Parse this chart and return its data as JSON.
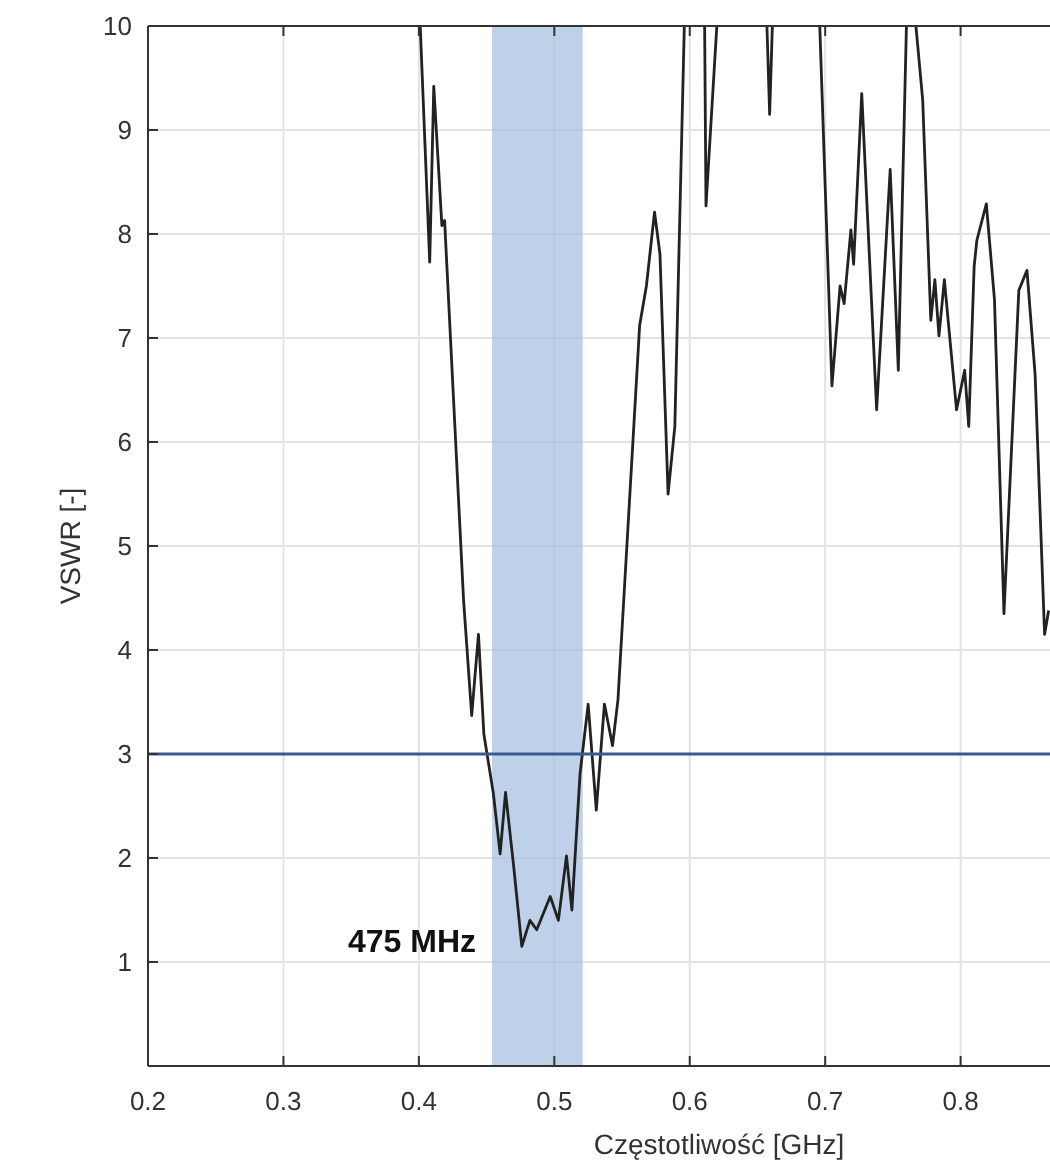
{
  "chart_data": {
    "type": "line",
    "xlabel": "Częstotliwość [GHz]",
    "ylabel": "VSWR [-]",
    "xlim": [
      0.2,
      0.866
    ],
    "ylim": [
      0,
      10
    ],
    "xticks": [
      0.2,
      0.3,
      0.4,
      0.5,
      0.6,
      0.7,
      0.8
    ],
    "yticks": [
      1,
      2,
      3,
      4,
      5,
      6,
      7,
      8,
      9,
      10
    ],
    "grid": true,
    "series": [
      {
        "color": "#222222",
        "x": [
          0.401,
          0.408,
          0.411,
          0.417,
          0.419,
          0.433,
          0.439,
          0.444,
          0.448,
          0.455,
          0.46,
          0.464,
          0.47,
          0.476,
          0.482,
          0.487,
          0.497,
          0.503,
          0.509,
          0.513,
          0.519,
          0.525,
          0.531,
          0.537,
          0.543,
          0.547,
          0.553,
          0.563,
          0.568,
          0.574,
          0.578,
          0.584,
          0.589,
          0.596,
          0.603,
          0.611,
          0.612,
          0.62,
          0.64,
          0.657,
          0.659,
          0.661,
          0.68,
          0.696,
          0.705,
          0.711,
          0.714,
          0.719,
          0.721,
          0.727,
          0.738,
          0.748,
          0.754,
          0.76,
          0.764,
          0.767,
          0.772,
          0.778,
          0.781,
          0.784,
          0.788,
          0.797,
          0.803,
          0.806,
          0.81,
          0.812,
          0.819,
          0.825,
          0.832,
          0.843,
          0.849,
          0.855,
          0.862,
          0.865
        ],
        "values": [
          10,
          7.73,
          9.42,
          8.08,
          8.13,
          4.48,
          3.37,
          4.15,
          3.19,
          2.62,
          2.04,
          2.63,
          1.92,
          1.15,
          1.4,
          1.31,
          1.63,
          1.4,
          2.02,
          1.5,
          2.81,
          3.48,
          2.46,
          3.48,
          3.08,
          3.52,
          4.87,
          7.12,
          7.5,
          8.21,
          7.81,
          5.5,
          6.15,
          10,
          null,
          10,
          8.27,
          10,
          null,
          10,
          9.15,
          10,
          null,
          10,
          6.54,
          7.5,
          7.33,
          8.04,
          7.71,
          9.35,
          6.31,
          8.62,
          6.69,
          10,
          null,
          10,
          9.29,
          7.17,
          7.56,
          7.02,
          7.56,
          6.31,
          6.69,
          6.15,
          7.69,
          7.94,
          8.29,
          7.37,
          4.35,
          7.46,
          7.65,
          6.65,
          4.15,
          4.38
        ]
      }
    ],
    "ref_lines": [
      {
        "axis": "y",
        "value": 3,
        "color": "#3a5a8c"
      }
    ],
    "bands": [
      {
        "axis": "x",
        "from": 0.454,
        "to": 0.521,
        "label": "475 MHz",
        "color": "#a9c1e0"
      }
    ]
  }
}
